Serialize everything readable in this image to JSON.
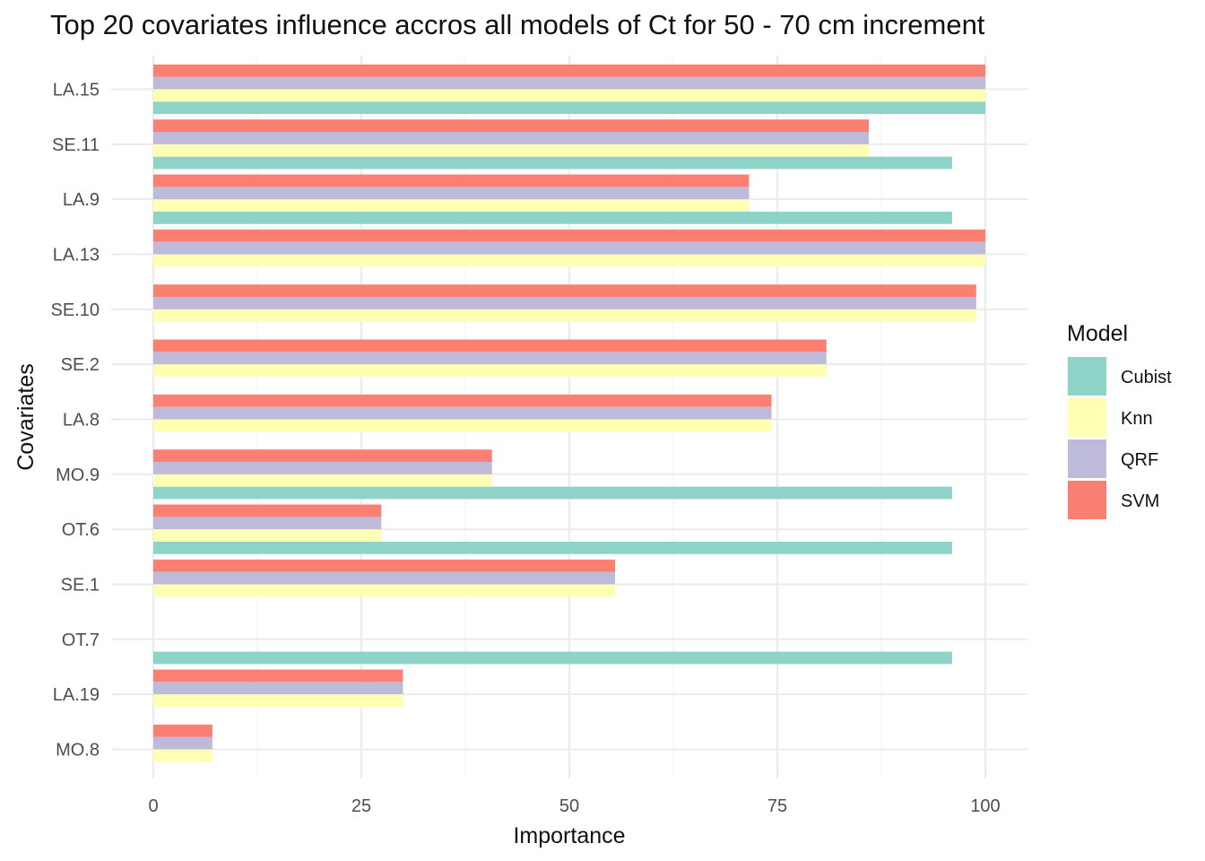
{
  "chart_data": {
    "type": "bar",
    "orientation": "horizontal",
    "title": "Top 20 covariates influence accros all models of Ct for 50 - 70 cm increment",
    "xlabel": "Importance",
    "ylabel": "Covariates",
    "xlim": [
      0,
      100
    ],
    "xticks": [
      "0",
      "25",
      "50",
      "75",
      "100"
    ],
    "grid": true,
    "legend": {
      "title": "Model",
      "position": "right"
    },
    "categories": [
      "LA.15",
      "SE.11",
      "LA.9",
      "LA.13",
      "SE.10",
      "SE.2",
      "LA.8",
      "MO.9",
      "OT.6",
      "SE.1",
      "OT.7",
      "LA.19",
      "MO.8"
    ],
    "series": [
      {
        "name": "Cubist",
        "color": "#8DD3C7",
        "values": [
          100,
          96,
          96,
          null,
          null,
          null,
          null,
          96,
          96,
          null,
          96,
          null,
          null
        ]
      },
      {
        "name": "Knn",
        "color": "#FFFFB3",
        "values": [
          100,
          86,
          71.6,
          100,
          98.9,
          80.9,
          74.3,
          40.7,
          27.4,
          55.5,
          null,
          30,
          7.1
        ]
      },
      {
        "name": "QRF",
        "color": "#BEBADA",
        "values": [
          100,
          86,
          71.6,
          100,
          98.9,
          80.9,
          74.3,
          40.7,
          27.4,
          55.5,
          null,
          30,
          7.1
        ]
      },
      {
        "name": "SVM",
        "color": "#FB8072",
        "values": [
          100,
          86,
          71.6,
          100,
          98.9,
          80.9,
          74.3,
          40.7,
          27.4,
          55.5,
          null,
          30,
          7.1
        ]
      }
    ]
  }
}
